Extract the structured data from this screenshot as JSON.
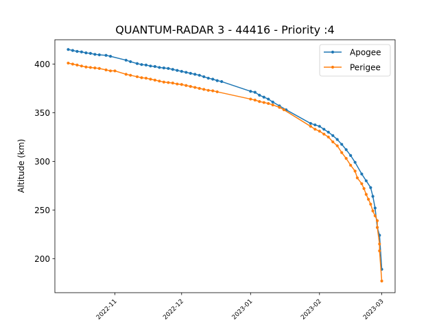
{
  "chart_data": {
    "type": "line",
    "title": "QUANTUM-RADAR 3 - 44416 - Priority :4",
    "xlabel": "",
    "ylabel": "Altitude (km)",
    "x_is_date": true,
    "xlim": [
      "2022-10-05",
      "2023-03-07"
    ],
    "ylim": [
      165,
      425
    ],
    "x_ticks": [
      "2022-11-01",
      "2022-12-01",
      "2023-01-01",
      "2023-02-01",
      "2023-03-01"
    ],
    "x_tick_labels": [
      "2022-11",
      "2022-12",
      "2023-01",
      "2023-02",
      "2023-03"
    ],
    "y_ticks": [
      200,
      250,
      300,
      350,
      400
    ],
    "legend_position": "top-right",
    "series": [
      {
        "name": "Apogee",
        "color": "#1f77b4",
        "points": [
          [
            "2022-10-11",
            415
          ],
          [
            "2022-10-13",
            414
          ],
          [
            "2022-10-15",
            413
          ],
          [
            "2022-10-17",
            412.5
          ],
          [
            "2022-10-19",
            411.5
          ],
          [
            "2022-10-21",
            411
          ],
          [
            "2022-10-23",
            410
          ],
          [
            "2022-10-25",
            409.5
          ],
          [
            "2022-10-28",
            409
          ],
          [
            "2022-10-30",
            408
          ],
          [
            "2022-11-06",
            404
          ],
          [
            "2022-11-08",
            402.5
          ],
          [
            "2022-11-11",
            400.5
          ],
          [
            "2022-11-13",
            399.5
          ],
          [
            "2022-11-15",
            399
          ],
          [
            "2022-11-17",
            398
          ],
          [
            "2022-11-19",
            397.5
          ],
          [
            "2022-11-21",
            396.5
          ],
          [
            "2022-11-23",
            396
          ],
          [
            "2022-11-25",
            395.5
          ],
          [
            "2022-11-27",
            394.5
          ],
          [
            "2022-11-29",
            393.5
          ],
          [
            "2022-12-01",
            392.5
          ],
          [
            "2022-12-03",
            391.5
          ],
          [
            "2022-12-05",
            390.5
          ],
          [
            "2022-12-07",
            389.5
          ],
          [
            "2022-12-09",
            388.5
          ],
          [
            "2022-12-11",
            387
          ],
          [
            "2022-12-13",
            385.5
          ],
          [
            "2022-12-15",
            384.5
          ],
          [
            "2022-12-17",
            383
          ],
          [
            "2022-12-19",
            382
          ],
          [
            "2023-01-01",
            372
          ],
          [
            "2023-01-03",
            371
          ],
          [
            "2023-01-05",
            368
          ],
          [
            "2023-01-07",
            366
          ],
          [
            "2023-01-09",
            364
          ],
          [
            "2023-01-11",
            361
          ],
          [
            "2023-01-14",
            357
          ],
          [
            "2023-01-17",
            353
          ],
          [
            "2023-01-28",
            339
          ],
          [
            "2023-01-30",
            337.5
          ],
          [
            "2023-02-01",
            336
          ],
          [
            "2023-02-03",
            333
          ],
          [
            "2023-02-05",
            330
          ],
          [
            "2023-02-07",
            326.5
          ],
          [
            "2023-02-09",
            322.5
          ],
          [
            "2023-02-11",
            317.5
          ],
          [
            "2023-02-13",
            312
          ],
          [
            "2023-02-15",
            306
          ],
          [
            "2023-02-17",
            299
          ],
          [
            "2023-02-20",
            287
          ],
          [
            "2023-02-22",
            280
          ],
          [
            "2023-02-24",
            273
          ],
          [
            "2023-02-25",
            264
          ],
          [
            "2023-02-26",
            252
          ],
          [
            "2023-02-27",
            232
          ],
          [
            "2023-02-28",
            224
          ],
          [
            "2023-03-01",
            189
          ]
        ]
      },
      {
        "name": "Perigee",
        "color": "#ff7f0e",
        "points": [
          [
            "2022-10-11",
            401
          ],
          [
            "2022-10-13",
            400
          ],
          [
            "2022-10-15",
            399
          ],
          [
            "2022-10-17",
            398
          ],
          [
            "2022-10-19",
            397
          ],
          [
            "2022-10-21",
            396.5
          ],
          [
            "2022-10-23",
            396
          ],
          [
            "2022-10-25",
            395.5
          ],
          [
            "2022-10-28",
            394
          ],
          [
            "2022-10-30",
            393
          ],
          [
            "2022-11-01",
            393
          ],
          [
            "2022-11-06",
            389.5
          ],
          [
            "2022-11-08",
            388.5
          ],
          [
            "2022-11-11",
            387
          ],
          [
            "2022-11-13",
            386
          ],
          [
            "2022-11-15",
            385.5
          ],
          [
            "2022-11-17",
            384.5
          ],
          [
            "2022-11-19",
            383.5
          ],
          [
            "2022-11-21",
            382.5
          ],
          [
            "2022-11-23",
            381.5
          ],
          [
            "2022-11-25",
            381
          ],
          [
            "2022-11-27",
            380.5
          ],
          [
            "2022-11-29",
            379.5
          ],
          [
            "2022-12-01",
            379
          ],
          [
            "2022-12-03",
            378
          ],
          [
            "2022-12-05",
            377
          ],
          [
            "2022-12-07",
            376
          ],
          [
            "2022-12-09",
            375
          ],
          [
            "2022-12-11",
            374
          ],
          [
            "2022-12-13",
            373
          ],
          [
            "2022-12-15",
            372.5
          ],
          [
            "2022-12-17",
            371.5
          ],
          [
            "2023-01-01",
            364
          ],
          [
            "2023-01-03",
            363
          ],
          [
            "2023-01-05",
            361.5
          ],
          [
            "2023-01-07",
            360.5
          ],
          [
            "2023-01-09",
            359.5
          ],
          [
            "2023-01-11",
            358
          ],
          [
            "2023-01-14",
            355.5
          ],
          [
            "2023-01-16",
            353
          ],
          [
            "2023-01-28",
            336
          ],
          [
            "2023-01-30",
            333
          ],
          [
            "2023-02-01",
            331
          ],
          [
            "2023-02-03",
            328
          ],
          [
            "2023-02-05",
            325
          ],
          [
            "2023-02-07",
            320
          ],
          [
            "2023-02-09",
            316
          ],
          [
            "2023-02-11",
            309
          ],
          [
            "2023-02-13",
            303
          ],
          [
            "2023-02-15",
            296
          ],
          [
            "2023-02-17",
            290
          ],
          [
            "2023-02-18",
            283
          ],
          [
            "2023-02-20",
            277
          ],
          [
            "2023-02-21",
            272
          ],
          [
            "2023-02-22",
            266
          ],
          [
            "2023-02-23",
            261
          ],
          [
            "2023-02-24",
            256
          ],
          [
            "2023-02-25",
            249
          ],
          [
            "2023-02-26",
            244
          ],
          [
            "2023-02-27",
            239
          ],
          [
            "2023-02-27",
            232
          ],
          [
            "2023-02-28",
            215
          ],
          [
            "2023-02-28",
            208
          ],
          [
            "2023-03-01",
            177
          ]
        ]
      }
    ]
  }
}
